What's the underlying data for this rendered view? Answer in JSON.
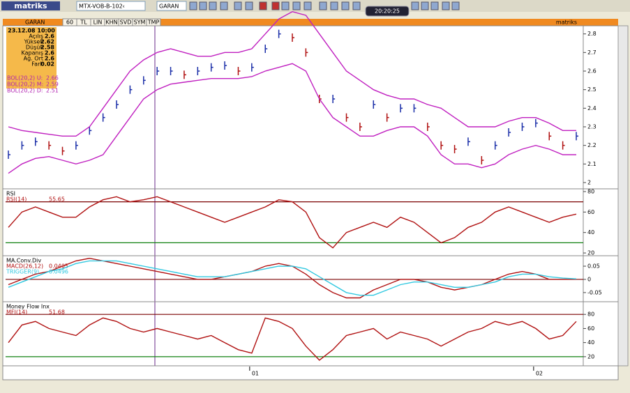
{
  "ui": {
    "toolbar": {
      "logo": "matriks",
      "symbol_list": "MTX-VOB-B-102‹",
      "symbol": "GARAN",
      "clock": "20:20:25"
    },
    "chart_header": {
      "symbol": "GARAN",
      "tabs": [
        "60",
        "TL",
        "LIN",
        "KHN",
        "SVD",
        "SYM",
        "TMP"
      ],
      "brand": "matriks"
    },
    "info": {
      "date": "23.12.08 10:00",
      "rows": [
        {
          "label": "Açılış",
          "value": 2.6
        },
        {
          "label": "Yüksek",
          "value": 2.62
        },
        {
          "label": "Düşük",
          "value": 2.58
        },
        {
          "label": "Kapanış",
          "value": 2.6
        },
        {
          "label": "Ağ. Ort",
          "value": 2.6
        },
        {
          "label": "Fark",
          "value": 0.02
        }
      ],
      "bands": [
        {
          "label": "BOL(20,2) U:",
          "value": 2.66
        },
        {
          "label": "BOL(20,2) M:",
          "value": 2.59
        },
        {
          "label": "BOL(20,2) D:",
          "value": 2.51
        }
      ]
    }
  },
  "chart_data": [
    {
      "type": "line",
      "ylim": [
        1.97,
        2.84
      ],
      "yticks": [
        2,
        2.1,
        2.2,
        2.3,
        2.4,
        2.5,
        2.6,
        2.7,
        2.8
      ],
      "up_color": "#1a2ea8",
      "down_color": "#b01010",
      "series": [
        {
          "style": "ticks",
          "color": "#000000",
          "values": [
            2.15,
            2.2,
            2.22,
            2.2,
            2.17,
            2.2,
            2.28,
            2.35,
            2.42,
            2.5,
            2.55,
            2.6,
            2.6,
            2.58,
            2.6,
            2.62,
            2.63,
            2.6,
            2.62,
            2.72,
            2.8,
            2.78,
            2.7,
            2.45,
            2.45,
            2.35,
            2.3,
            2.42,
            2.35,
            2.4,
            2.4,
            2.3,
            2.2,
            2.18,
            2.22,
            2.12,
            2.2,
            2.27,
            2.3,
            2.32,
            2.25,
            2.2,
            2.25
          ]
        },
        {
          "style": "line",
          "color": "#c020c0",
          "values": [
            2.3,
            2.28,
            2.27,
            2.26,
            2.25,
            2.25,
            2.3,
            2.4,
            2.5,
            2.6,
            2.66,
            2.7,
            2.72,
            2.7,
            2.68,
            2.68,
            2.7,
            2.7,
            2.72,
            2.8,
            2.88,
            2.92,
            2.9,
            2.8,
            2.7,
            2.6,
            2.55,
            2.5,
            2.47,
            2.45,
            2.45,
            2.42,
            2.4,
            2.35,
            2.3,
            2.3,
            2.3,
            2.33,
            2.35,
            2.35,
            2.32,
            2.28,
            2.28
          ]
        },
        {
          "style": "line",
          "color": "#c020c0",
          "values": [
            2.05,
            2.1,
            2.13,
            2.14,
            2.12,
            2.1,
            2.12,
            2.15,
            2.25,
            2.35,
            2.45,
            2.5,
            2.53,
            2.54,
            2.55,
            2.56,
            2.56,
            2.56,
            2.57,
            2.6,
            2.62,
            2.64,
            2.6,
            2.45,
            2.35,
            2.3,
            2.25,
            2.25,
            2.28,
            2.3,
            2.3,
            2.25,
            2.15,
            2.1,
            2.1,
            2.08,
            2.1,
            2.15,
            2.18,
            2.2,
            2.18,
            2.15,
            2.15
          ]
        }
      ]
    },
    {
      "type": "line",
      "title": "RSI",
      "ylim": [
        18,
        82
      ],
      "yticks": [
        20,
        40,
        60,
        80
      ],
      "levels": [
        70,
        30
      ],
      "level_colors": [
        "#7a0000",
        "#108010"
      ],
      "series": [
        {
          "style": "line",
          "name": "RSI(14)",
          "last": 55.65,
          "color": "#b01010",
          "values": [
            45,
            60,
            65,
            60,
            55,
            55,
            65,
            72,
            75,
            70,
            72,
            75,
            70,
            65,
            60,
            55,
            50,
            55,
            60,
            65,
            72,
            70,
            60,
            35,
            25,
            40,
            45,
            50,
            45,
            55,
            50,
            40,
            30,
            35,
            45,
            50,
            60,
            65,
            60,
            55,
            50,
            55,
            58
          ]
        }
      ]
    },
    {
      "type": "line",
      "title": "MA.Conv.Div",
      "ylim": [
        -0.082,
        0.087
      ],
      "yticks": [
        -0.05,
        0,
        0.05
      ],
      "levels": [
        0
      ],
      "level_colors": [
        "#7a0000"
      ],
      "series": [
        {
          "style": "line",
          "name": "MACD(26,12)",
          "last": 0.0405,
          "color": "#b01010",
          "values": [
            -0.02,
            0,
            0.02,
            0.03,
            0.05,
            0.07,
            0.08,
            0.07,
            0.06,
            0.05,
            0.04,
            0.03,
            0.02,
            0.01,
            0,
            0,
            0.01,
            0.02,
            0.03,
            0.05,
            0.06,
            0.05,
            0.02,
            -0.02,
            -0.05,
            -0.07,
            -0.07,
            -0.04,
            -0.02,
            0,
            0,
            -0.01,
            -0.03,
            -0.04,
            -0.03,
            -0.02,
            0,
            0.02,
            0.03,
            0.02,
            0,
            0,
            0
          ]
        },
        {
          "style": "line",
          "name": "TRIGGER(9)",
          "last": 0.0496,
          "color": "#30c8e0",
          "values": [
            -0.03,
            -0.01,
            0.01,
            0.03,
            0.04,
            0.06,
            0.07,
            0.07,
            0.07,
            0.06,
            0.05,
            0.04,
            0.03,
            0.02,
            0.01,
            0.01,
            0.01,
            0.02,
            0.03,
            0.04,
            0.05,
            0.05,
            0.04,
            0.01,
            -0.02,
            -0.05,
            -0.06,
            -0.06,
            -0.04,
            -0.02,
            -0.01,
            -0.01,
            -0.02,
            -0.03,
            -0.03,
            -0.02,
            -0.01,
            0.01,
            0.02,
            0.02,
            0.01,
            0.005,
            0.002
          ]
        }
      ]
    },
    {
      "type": "line",
      "title": "Money Flow Inx",
      "ylim": [
        10,
        97
      ],
      "yticks": [
        20,
        40,
        60,
        80
      ],
      "levels": [
        80,
        20
      ],
      "level_colors": [
        "#7a0000",
        "#108010"
      ],
      "categories": [
        null,
        null,
        null,
        null,
        null,
        null,
        null,
        null,
        null,
        null,
        null,
        null,
        null,
        null,
        null,
        null,
        null,
        null,
        "01",
        null,
        null,
        null,
        null,
        null,
        null,
        null,
        null,
        null,
        null,
        null,
        null,
        null,
        null,
        null,
        null,
        null,
        null,
        null,
        null,
        "02",
        null,
        null,
        null
      ],
      "series": [
        {
          "style": "line",
          "name": "MFI(14)",
          "last": 51.68,
          "color": "#b01010",
          "values": [
            40,
            65,
            70,
            60,
            55,
            50,
            65,
            75,
            70,
            60,
            55,
            60,
            55,
            50,
            45,
            50,
            40,
            30,
            25,
            75,
            70,
            60,
            35,
            15,
            30,
            50,
            55,
            60,
            45,
            55,
            50,
            45,
            35,
            45,
            55,
            60,
            70,
            65,
            70,
            60,
            45,
            50,
            70
          ]
        }
      ]
    }
  ]
}
